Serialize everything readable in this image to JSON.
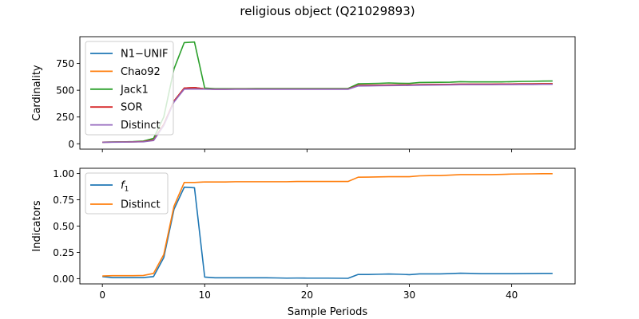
{
  "figure": {
    "title": "religious object (Q21029893)"
  },
  "chart_data": [
    {
      "type": "line",
      "ylabel": "Cardinality",
      "xlabel": "",
      "xlim": [
        -2.2,
        46.2
      ],
      "ylim": [
        -50,
        1000
      ],
      "xticks": [
        0,
        10,
        20,
        30,
        40
      ],
      "xtick_labels_visible": false,
      "yticks": [
        0,
        250,
        500,
        750
      ],
      "ytick_labels": [
        "0",
        "250",
        "500",
        "750"
      ],
      "legend": "upper-left",
      "grid": false,
      "x": [
        0,
        1,
        2,
        3,
        4,
        5,
        6,
        7,
        8,
        9,
        10,
        11,
        12,
        13,
        14,
        15,
        16,
        17,
        18,
        19,
        20,
        21,
        22,
        23,
        24,
        25,
        26,
        27,
        28,
        29,
        30,
        31,
        32,
        33,
        34,
        35,
        36,
        37,
        38,
        39,
        40,
        41,
        42,
        43,
        44
      ],
      "series": [
        {
          "name": "N1−UNIF",
          "color": "#1f77b4",
          "values": [
            15,
            16,
            17,
            18,
            20,
            35,
            180,
            400,
            520,
            525,
            512,
            510,
            510,
            511,
            511,
            511,
            511,
            511,
            511,
            511,
            511,
            511,
            511,
            511,
            511,
            545,
            546,
            547,
            548,
            549,
            550,
            552,
            553,
            554,
            555,
            557,
            557,
            557,
            557,
            558,
            558,
            559,
            559,
            560,
            560
          ]
        },
        {
          "name": "Chao92",
          "color": "#ff7f0e",
          "values": [
            15,
            16,
            17,
            18,
            20,
            35,
            180,
            400,
            520,
            525,
            512,
            510,
            510,
            511,
            511,
            511,
            511,
            511,
            511,
            511,
            511,
            511,
            511,
            511,
            511,
            545,
            546,
            547,
            548,
            549,
            550,
            552,
            553,
            554,
            555,
            557,
            557,
            557,
            557,
            558,
            558,
            559,
            559,
            560,
            560
          ]
        },
        {
          "name": "Jack1",
          "color": "#2ca02c",
          "values": [
            15,
            17,
            18,
            20,
            25,
            50,
            250,
            700,
            945,
            950,
            520,
            515,
            515,
            515,
            515,
            516,
            516,
            516,
            516,
            516,
            516,
            516,
            516,
            516,
            516,
            560,
            562,
            564,
            568,
            565,
            564,
            572,
            573,
            574,
            575,
            580,
            578,
            578,
            578,
            578,
            580,
            582,
            583,
            585,
            586
          ]
        },
        {
          "name": "SOR",
          "color": "#d62728",
          "values": [
            15,
            16,
            17,
            18,
            20,
            35,
            180,
            400,
            520,
            525,
            512,
            510,
            510,
            511,
            511,
            511,
            511,
            511,
            511,
            511,
            511,
            511,
            511,
            511,
            511,
            545,
            546,
            547,
            548,
            549,
            550,
            552,
            553,
            554,
            555,
            557,
            557,
            557,
            557,
            558,
            558,
            559,
            559,
            560,
            560
          ]
        },
        {
          "name": "Distinct",
          "color": "#9467bd",
          "values": [
            14,
            15,
            16,
            17,
            18,
            30,
            170,
            390,
            510,
            512,
            510,
            508,
            508,
            509,
            509,
            509,
            509,
            509,
            509,
            509,
            509,
            509,
            509,
            509,
            509,
            540,
            541,
            542,
            543,
            544,
            545,
            547,
            548,
            549,
            550,
            552,
            552,
            552,
            552,
            553,
            553,
            554,
            554,
            555,
            555
          ]
        }
      ]
    },
    {
      "type": "line",
      "ylabel": "Indicators",
      "xlabel": "Sample Periods",
      "xlim": [
        -2.2,
        46.2
      ],
      "ylim": [
        -0.05,
        1.05
      ],
      "xticks": [
        0,
        10,
        20,
        30,
        40
      ],
      "xtick_labels": [
        "0",
        "10",
        "20",
        "30",
        "40"
      ],
      "yticks": [
        0.0,
        0.25,
        0.5,
        0.75,
        1.0
      ],
      "ytick_labels": [
        "0.00",
        "0.25",
        "0.50",
        "0.75",
        "1.00"
      ],
      "legend": "upper-left",
      "grid": false,
      "x": [
        0,
        1,
        2,
        3,
        4,
        5,
        6,
        7,
        8,
        9,
        10,
        11,
        12,
        13,
        14,
        15,
        16,
        17,
        18,
        19,
        20,
        21,
        22,
        23,
        24,
        25,
        26,
        27,
        28,
        29,
        30,
        31,
        32,
        33,
        34,
        35,
        36,
        37,
        38,
        39,
        40,
        41,
        42,
        43,
        44
      ],
      "series": [
        {
          "name": "f",
          "name_subscript": "1",
          "color": "#1f77b4",
          "values": [
            0.02,
            0.01,
            0.01,
            0.01,
            0.01,
            0.02,
            0.2,
            0.66,
            0.87,
            0.865,
            0.015,
            0.008,
            0.008,
            0.008,
            0.008,
            0.008,
            0.008,
            0.007,
            0.005,
            0.006,
            0.005,
            0.005,
            0.005,
            0.004,
            0.003,
            0.04,
            0.04,
            0.042,
            0.044,
            0.042,
            0.038,
            0.045,
            0.045,
            0.045,
            0.048,
            0.052,
            0.05,
            0.047,
            0.047,
            0.047,
            0.047,
            0.048,
            0.049,
            0.05,
            0.05
          ]
        },
        {
          "name": "Distinct",
          "color": "#ff7f0e",
          "values": [
            0.025,
            0.028,
            0.028,
            0.028,
            0.03,
            0.05,
            0.23,
            0.69,
            0.915,
            0.915,
            0.92,
            0.92,
            0.92,
            0.922,
            0.922,
            0.922,
            0.922,
            0.922,
            0.922,
            0.924,
            0.924,
            0.924,
            0.924,
            0.924,
            0.924,
            0.965,
            0.966,
            0.968,
            0.97,
            0.97,
            0.97,
            0.978,
            0.98,
            0.98,
            0.985,
            0.99,
            0.99,
            0.99,
            0.99,
            0.992,
            0.995,
            0.996,
            0.997,
            0.998,
            0.998
          ]
        }
      ]
    }
  ]
}
